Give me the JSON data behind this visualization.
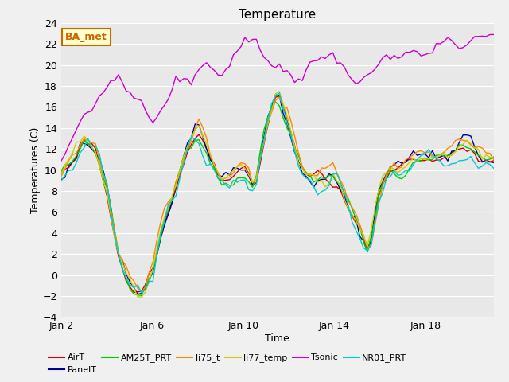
{
  "title": "Temperature",
  "xlabel": "Time",
  "ylabel": "Temperatures (C)",
  "ylim": [
    -4,
    24
  ],
  "yticks": [
    -4,
    -2,
    0,
    2,
    4,
    6,
    8,
    10,
    12,
    14,
    16,
    18,
    20,
    22,
    24
  ],
  "bg_color": "#e8e8e8",
  "series": {
    "AirT": {
      "color": "#cc0000",
      "lw": 1.0
    },
    "PanelT": {
      "color": "#000099",
      "lw": 1.0
    },
    "AM25T_PRT": {
      "color": "#00cc00",
      "lw": 1.0
    },
    "li75_t": {
      "color": "#ff8800",
      "lw": 1.0
    },
    "li77_temp": {
      "color": "#cccc00",
      "lw": 1.0
    },
    "Tsonic": {
      "color": "#cc00cc",
      "lw": 1.0
    },
    "NR01_PRT": {
      "color": "#00cccc",
      "lw": 1.0
    }
  },
  "legend_bbox_label": "BA_met",
  "legend_bbox_color": "#cc6600",
  "legend_bbox_bg": "#ffffcc",
  "xtick_labels": [
    "Jan 2",
    "Jan 6",
    "Jan 10",
    "Jan 14",
    "Jan 18"
  ],
  "xtick_positions": [
    1,
    5,
    9,
    13,
    17
  ],
  "xlim": [
    1,
    20
  ]
}
